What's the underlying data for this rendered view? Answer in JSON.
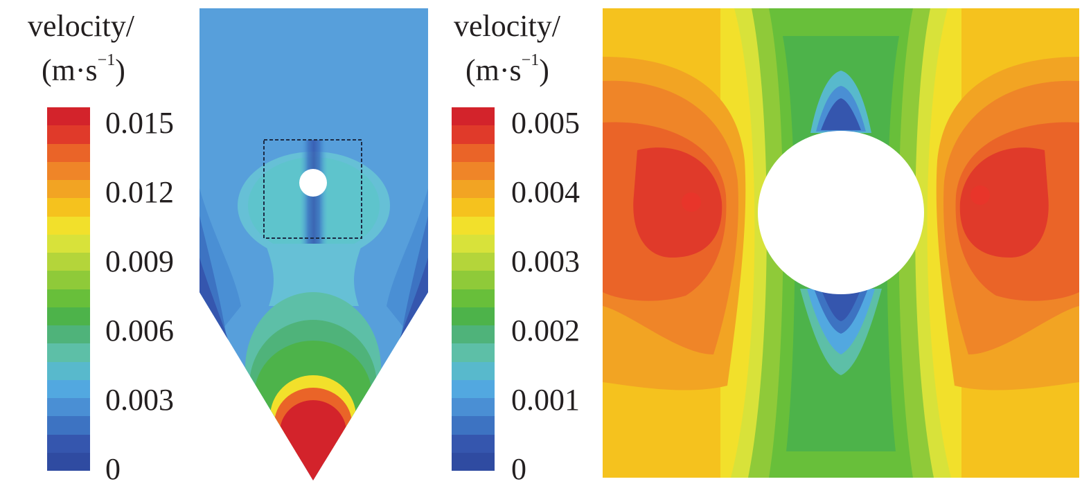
{
  "palette": [
    "#d3232b",
    "#e03a2a",
    "#ea6428",
    "#ef8528",
    "#f2a423",
    "#f5c21e",
    "#f2e02b",
    "#d8e23a",
    "#b4d53a",
    "#8fca39",
    "#68bf3a",
    "#4db34a",
    "#4fb37a",
    "#5dbfa7",
    "#58b9cc",
    "#52a8e0",
    "#4a8fd4",
    "#3d73c2",
    "#3556ae",
    "#2f4ba1"
  ],
  "legend_left": {
    "title_line1": "velocity/",
    "title_line2_prefix": "(m·s",
    "title_line2_sup": "−1",
    "title_line2_suffix": ")",
    "ticks": [
      "0.015",
      "0.012",
      "0.009",
      "0.006",
      "0.003",
      "0"
    ]
  },
  "legend_right": {
    "title_line1": "velocity/",
    "title_line2_prefix": "(m·s",
    "title_line2_sup": "−1",
    "title_line2_suffix": ")",
    "ticks": [
      "0.005",
      "0.004",
      "0.003",
      "0.002",
      "0.001",
      "0"
    ]
  }
}
